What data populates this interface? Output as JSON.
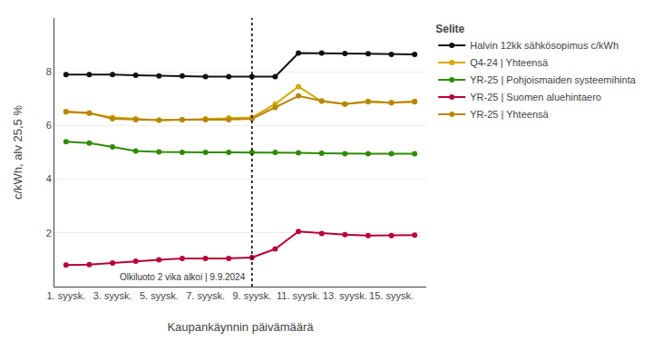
{
  "chart_data": {
    "type": "line",
    "x": [
      1,
      2,
      3,
      4,
      5,
      6,
      7,
      8,
      9,
      10,
      11,
      12,
      13,
      14,
      15,
      16
    ],
    "series": [
      {
        "name": "Halvin 12kk sähkösopimus c/kWh",
        "color": "#111111",
        "values": [
          7.9,
          7.9,
          7.9,
          7.87,
          7.85,
          7.85,
          7.82,
          7.82,
          7.82,
          7.82,
          8.7,
          8.7,
          8.68,
          8.67,
          8.65,
          8.65
        ]
      },
      {
        "name": "Q4-24 | Yhteensä",
        "color": "#d4a800",
        "values": [
          6.5,
          6.45,
          6.3,
          6.25,
          6.2,
          6.22,
          6.25,
          6.28,
          6.3,
          6.8,
          7.45,
          6.9,
          6.8,
          6.9,
          6.85,
          6.9
        ]
      },
      {
        "name": "YR-25 | Pohjoismaiden systeemihinta",
        "color": "#2e8b00",
        "values": [
          5.4,
          5.35,
          5.2,
          5.05,
          5.02,
          5.0,
          5.0,
          5.0,
          5.0,
          5.0,
          4.98,
          4.97,
          4.95,
          4.95,
          4.95,
          4.95
        ]
      },
      {
        "name": "YR-25 | Suomen aluehintaero",
        "color": "#b8003a",
        "values": [
          0.8,
          0.82,
          0.88,
          0.95,
          1.0,
          1.05,
          1.05,
          1.05,
          1.08,
          1.4,
          2.05,
          1.98,
          1.93,
          1.9,
          1.9,
          1.92
        ]
      },
      {
        "name": "YR-25 | Yhteensä",
        "color": "#b8860b",
        "values": [
          6.52,
          6.47,
          6.25,
          6.22,
          6.2,
          6.22,
          6.22,
          6.22,
          6.25,
          6.67,
          7.1,
          6.92,
          6.8,
          6.88,
          6.85,
          6.88
        ]
      }
    ],
    "x_label": "Kaupankäynnin päivämäärä",
    "y_label": "c/kWh, alv 25,5 %",
    "xlim": [
      0.5,
      16.5
    ],
    "xticks": [
      {
        "value": 1,
        "label": "1. syysk."
      },
      {
        "value": 3,
        "label": "3. syysk."
      },
      {
        "value": 5,
        "label": "5. syysk."
      },
      {
        "value": 7,
        "label": "7. syysk."
      },
      {
        "value": 9,
        "label": "9. syysk."
      },
      {
        "value": 11,
        "label": "11. syysk."
      },
      {
        "value": 13,
        "label": "13. syysk."
      },
      {
        "value": 15,
        "label": "15. syysk."
      }
    ],
    "ylim": [
      0,
      10
    ],
    "yticks": [
      2,
      4,
      6,
      8
    ],
    "grid": true,
    "legend": "right",
    "legend_title": "Selite",
    "marker": "circle",
    "line_style": "solid",
    "annotations": [
      {
        "x": 9,
        "text": "Olkiluoto 2 vika alkoi | 9.9.2024",
        "line_style": "dotted"
      }
    ]
  }
}
